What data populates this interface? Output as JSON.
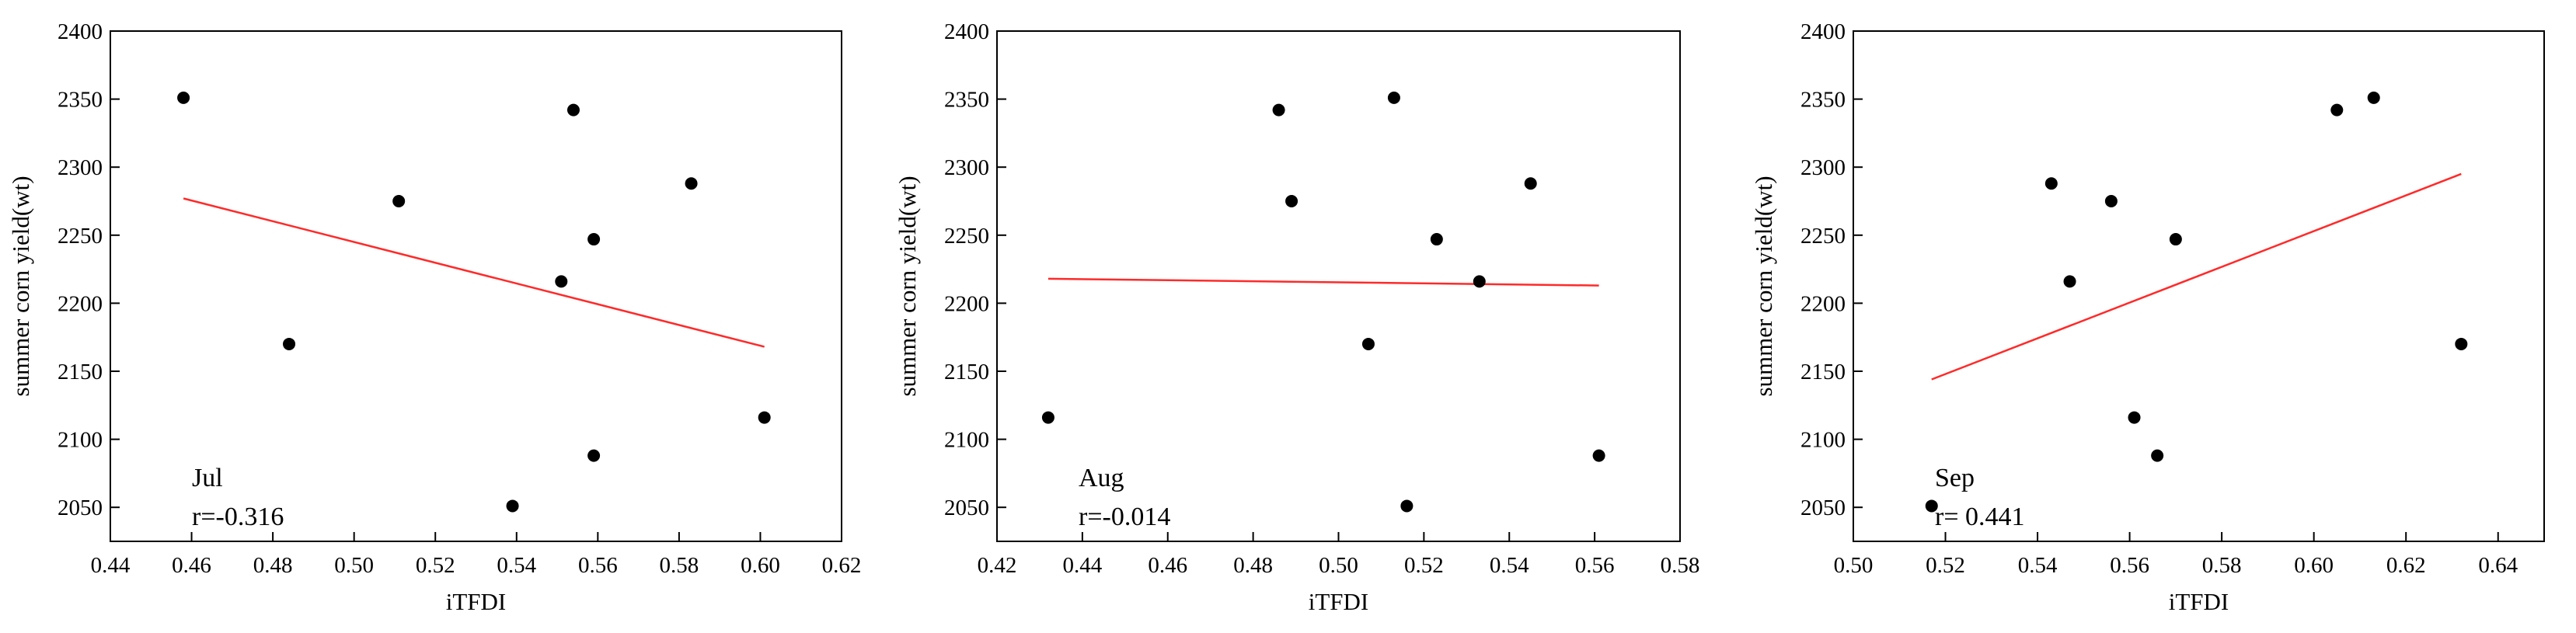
{
  "chart_data": [
    {
      "type": "scatter",
      "xlabel": "iTFDI",
      "ylabel": "summer corn yield(wt)",
      "xlim": [
        0.44,
        0.62
      ],
      "ylim": [
        2025,
        2400
      ],
      "xticks": [
        0.44,
        0.46,
        0.48,
        0.5,
        0.52,
        0.54,
        0.56,
        0.58,
        0.6,
        0.62
      ],
      "yticks": [
        2050,
        2100,
        2150,
        2200,
        2250,
        2300,
        2350,
        2400
      ],
      "points": [
        [
          0.458,
          2351
        ],
        [
          0.484,
          2170
        ],
        [
          0.511,
          2275
        ],
        [
          0.539,
          2051
        ],
        [
          0.551,
          2216
        ],
        [
          0.554,
          2342
        ],
        [
          0.559,
          2247
        ],
        [
          0.559,
          2088
        ],
        [
          0.583,
          2288
        ],
        [
          0.601,
          2116
        ]
      ],
      "trendline": {
        "x": [
          0.458,
          0.601
        ],
        "y": [
          2277,
          2168
        ]
      },
      "annotation_month": "Jul",
      "annotation_r": "r=-0.316",
      "marker_color": "#000000",
      "trend_color": "#ff2a2a",
      "grid": false
    },
    {
      "type": "scatter",
      "xlabel": "iTFDI",
      "ylabel": "summer corn yield(wt)",
      "xlim": [
        0.42,
        0.58
      ],
      "ylim": [
        2025,
        2400
      ],
      "xticks": [
        0.42,
        0.44,
        0.46,
        0.48,
        0.5,
        0.52,
        0.54,
        0.56,
        0.58
      ],
      "yticks": [
        2050,
        2100,
        2150,
        2200,
        2250,
        2300,
        2350,
        2400
      ],
      "points": [
        [
          0.432,
          2116
        ],
        [
          0.486,
          2342
        ],
        [
          0.489,
          2275
        ],
        [
          0.507,
          2170
        ],
        [
          0.513,
          2351
        ],
        [
          0.516,
          2051
        ],
        [
          0.523,
          2247
        ],
        [
          0.533,
          2216
        ],
        [
          0.545,
          2288
        ],
        [
          0.561,
          2088
        ]
      ],
      "trendline": {
        "x": [
          0.432,
          0.561
        ],
        "y": [
          2218,
          2213
        ]
      },
      "annotation_month": "Aug",
      "annotation_r": "r=-0.014",
      "marker_color": "#000000",
      "trend_color": "#ff2a2a",
      "grid": false
    },
    {
      "type": "scatter",
      "xlabel": "iTFDI",
      "ylabel": "summer corn yield(wt)",
      "xlim": [
        0.5,
        0.65
      ],
      "ylim": [
        2025,
        2400
      ],
      "xticks": [
        0.5,
        0.52,
        0.54,
        0.56,
        0.58,
        0.6,
        0.62,
        0.64
      ],
      "yticks": [
        2050,
        2100,
        2150,
        2200,
        2250,
        2300,
        2350,
        2400
      ],
      "points": [
        [
          0.517,
          2051
        ],
        [
          0.543,
          2288
        ],
        [
          0.547,
          2216
        ],
        [
          0.556,
          2275
        ],
        [
          0.561,
          2116
        ],
        [
          0.566,
          2088
        ],
        [
          0.57,
          2247
        ],
        [
          0.605,
          2342
        ],
        [
          0.613,
          2351
        ],
        [
          0.632,
          2170
        ]
      ],
      "trendline": {
        "x": [
          0.517,
          0.632
        ],
        "y": [
          2144,
          2295
        ]
      },
      "annotation_month": "Sep",
      "annotation_r": "r= 0.441",
      "marker_color": "#000000",
      "trend_color": "#ff2a2a",
      "grid": false
    }
  ]
}
